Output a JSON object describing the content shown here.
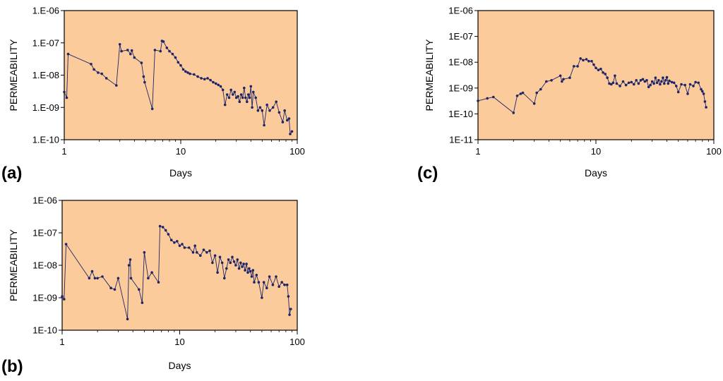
{
  "chart_data": [
    {
      "type": "line",
      "panel_label": "(a)",
      "xlabel": "Days",
      "ylabel": "PERMEABILITY",
      "xscale": "log",
      "yscale": "log",
      "xlim": [
        1,
        100
      ],
      "ylim": [
        1e-10,
        1e-06
      ],
      "x_ticks": [
        {
          "value": 1,
          "label": "1"
        },
        {
          "value": 10,
          "label": "10"
        },
        {
          "value": 100,
          "label": "100"
        }
      ],
      "y_ticks": [
        {
          "value": 1e-10,
          "label": "1.E-10"
        },
        {
          "value": 1e-09,
          "label": "1.E-09"
        },
        {
          "value": 1e-08,
          "label": "1.E-08"
        },
        {
          "value": 1e-07,
          "label": "1.E-07"
        },
        {
          "value": 1e-06,
          "label": "1.E-06"
        }
      ],
      "background": "#FCCB9C",
      "series_color": "#1E2566",
      "series": [
        {
          "name": "permeability",
          "points": [
            [
              1.0,
              3e-09
            ],
            [
              1.05,
              2e-09
            ],
            [
              1.08,
              4.5e-08
            ],
            [
              1.7,
              2.2e-08
            ],
            [
              1.8,
              1.5e-08
            ],
            [
              1.95,
              1.2e-08
            ],
            [
              2.1,
              1.1e-08
            ],
            [
              2.3,
              8e-09
            ],
            [
              2.8,
              4.8e-09
            ],
            [
              3.0,
              9e-08
            ],
            [
              3.1,
              5.5e-08
            ],
            [
              3.5,
              6e-08
            ],
            [
              3.7,
              4.5e-08
            ],
            [
              3.8,
              5.8e-08
            ],
            [
              4.0,
              3.5e-08
            ],
            [
              4.6,
              2.4e-08
            ],
            [
              4.8,
              9e-09
            ],
            [
              4.9,
              6e-09
            ],
            [
              5.7,
              9e-10
            ],
            [
              6.0,
              6e-08
            ],
            [
              6.7,
              5.5e-08
            ],
            [
              6.9,
              1.15e-07
            ],
            [
              7.1,
              1.1e-07
            ],
            [
              7.6,
              7e-08
            ],
            [
              8.0,
              5.5e-08
            ],
            [
              8.5,
              4.5e-08
            ],
            [
              9.0,
              3.5e-08
            ],
            [
              9.5,
              2.5e-08
            ],
            [
              10.0,
              2e-08
            ],
            [
              10.5,
              1.5e-08
            ],
            [
              11.0,
              1.3e-08
            ],
            [
              11.5,
              1.2e-08
            ],
            [
              12.0,
              1.1e-08
            ],
            [
              13.0,
              1.05e-08
            ],
            [
              14.0,
              9e-09
            ],
            [
              15.0,
              8e-09
            ],
            [
              16.0,
              7.5e-09
            ],
            [
              17.0,
              8e-09
            ],
            [
              18.0,
              7e-09
            ],
            [
              19.0,
              6e-09
            ],
            [
              20.0,
              5.5e-09
            ],
            [
              21.0,
              5e-09
            ],
            [
              22.0,
              4.5e-09
            ],
            [
              23.0,
              3.5e-09
            ],
            [
              24.0,
              1.2e-09
            ],
            [
              25.0,
              2.5e-09
            ],
            [
              26.0,
              2e-09
            ],
            [
              27.0,
              3.5e-09
            ],
            [
              28.0,
              2.5e-09
            ],
            [
              29.0,
              3e-09
            ],
            [
              30.0,
              2e-09
            ],
            [
              31.0,
              2.2e-09
            ],
            [
              32.0,
              1.5e-09
            ],
            [
              33.0,
              2.5e-09
            ],
            [
              34.0,
              2e-09
            ],
            [
              35.0,
              4e-09
            ],
            [
              36.0,
              2e-09
            ],
            [
              37.0,
              1.5e-09
            ],
            [
              38.0,
              2.5e-09
            ],
            [
              39.0,
              2e-09
            ],
            [
              40.0,
              4.5e-09
            ],
            [
              41.0,
              1e-09
            ],
            [
              42.0,
              3e-09
            ],
            [
              44.0,
              2e-09
            ],
            [
              46.0,
              8e-10
            ],
            [
              48.0,
              1e-09
            ],
            [
              50.0,
              8e-10
            ],
            [
              52.0,
              2.8e-10
            ],
            [
              55.0,
              1.2e-09
            ],
            [
              58.0,
              8e-10
            ],
            [
              62.0,
              1e-09
            ],
            [
              66.0,
              1.5e-09
            ],
            [
              70.0,
              7e-10
            ],
            [
              75.0,
              3.5e-10
            ],
            [
              78.0,
              8e-10
            ],
            [
              82.0,
              4e-10
            ],
            [
              85.0,
              4.5e-10
            ],
            [
              87.0,
              1.5e-10
            ],
            [
              90.0,
              1.8e-10
            ]
          ]
        }
      ]
    },
    {
      "type": "line",
      "panel_label": "(b)",
      "xlabel": "Days",
      "ylabel": "PERMEABILITY",
      "xscale": "log",
      "yscale": "log",
      "xlim": [
        1,
        100
      ],
      "ylim": [
        1e-10,
        1e-06
      ],
      "x_ticks": [
        {
          "value": 1,
          "label": "1"
        },
        {
          "value": 10,
          "label": "10"
        },
        {
          "value": 100,
          "label": "100"
        }
      ],
      "y_ticks": [
        {
          "value": 1e-10,
          "label": "1E-10"
        },
        {
          "value": 1e-09,
          "label": "1E-09"
        },
        {
          "value": 1e-08,
          "label": "1E-08"
        },
        {
          "value": 1e-07,
          "label": "1E-07"
        },
        {
          "value": 1e-06,
          "label": "1E-06"
        }
      ],
      "background": "#FCCB9C",
      "series_color": "#1E2566",
      "series": [
        {
          "name": "permeability",
          "points": [
            [
              1.0,
              1.1e-09
            ],
            [
              1.04,
              9e-10
            ],
            [
              1.08,
              4.5e-08
            ],
            [
              1.7,
              4e-09
            ],
            [
              1.8,
              6.5e-09
            ],
            [
              1.9,
              4e-09
            ],
            [
              2.0,
              4e-09
            ],
            [
              2.2,
              4.5e-09
            ],
            [
              2.6,
              2e-09
            ],
            [
              2.8,
              1.8e-09
            ],
            [
              3.0,
              4e-09
            ],
            [
              3.6,
              2.2e-10
            ],
            [
              3.7,
              1e-08
            ],
            [
              3.8,
              1.5e-08
            ],
            [
              3.85,
              4e-09
            ],
            [
              4.5,
              1.8e-09
            ],
            [
              4.8,
              7e-10
            ],
            [
              5.0,
              2.5e-08
            ],
            [
              5.4,
              4e-09
            ],
            [
              5.8,
              6e-09
            ],
            [
              6.6,
              3e-09
            ],
            [
              6.8,
              1.6e-07
            ],
            [
              7.2,
              1.5e-07
            ],
            [
              7.6,
              1.2e-07
            ],
            [
              8.0,
              9e-08
            ],
            [
              8.5,
              6e-08
            ],
            [
              9.0,
              5e-08
            ],
            [
              9.5,
              5.5e-08
            ],
            [
              10.0,
              4e-08
            ],
            [
              10.5,
              4.5e-08
            ],
            [
              11.0,
              3.5e-08
            ],
            [
              12.0,
              3.5e-08
            ],
            [
              13.0,
              2.5e-08
            ],
            [
              13.5,
              4e-08
            ],
            [
              14.0,
              2.5e-08
            ],
            [
              15.0,
              2e-08
            ],
            [
              16.0,
              3e-08
            ],
            [
              17.0,
              2.5e-08
            ],
            [
              18.0,
              2.8e-08
            ],
            [
              19.0,
              1.2e-08
            ],
            [
              20.0,
              2e-08
            ],
            [
              21.0,
              6e-09
            ],
            [
              22.0,
              1.8e-08
            ],
            [
              23.0,
              1.2e-08
            ],
            [
              24.0,
              4e-09
            ],
            [
              25.0,
              8e-09
            ],
            [
              26.0,
              1.5e-08
            ],
            [
              27.0,
              1.2e-08
            ],
            [
              28.0,
              1.8e-08
            ],
            [
              29.0,
              1.3e-08
            ],
            [
              30.0,
              1e-08
            ],
            [
              31.0,
              1.5e-08
            ],
            [
              32.0,
              8e-09
            ],
            [
              33.0,
              1.2e-08
            ],
            [
              34.0,
              9e-09
            ],
            [
              35.0,
              1.1e-08
            ],
            [
              36.0,
              7e-09
            ],
            [
              37.0,
              1.1e-08
            ],
            [
              38.0,
              6e-09
            ],
            [
              39.0,
              8e-09
            ],
            [
              40.0,
              6.5e-09
            ],
            [
              41.0,
              4.5e-09
            ],
            [
              42.0,
              7e-09
            ],
            [
              43.0,
              3e-09
            ],
            [
              45.0,
              5e-09
            ],
            [
              47.0,
              3e-09
            ],
            [
              50.0,
              1e-09
            ],
            [
              52.0,
              3e-09
            ],
            [
              55.0,
              2e-09
            ],
            [
              58.0,
              4.5e-09
            ],
            [
              62.0,
              2.5e-09
            ],
            [
              66.0,
              4.5e-09
            ],
            [
              70.0,
              2.2e-09
            ],
            [
              74.0,
              3e-09
            ],
            [
              78.0,
              2.5e-09
            ],
            [
              82.0,
              2.5e-09
            ],
            [
              84.0,
              1.1e-09
            ],
            [
              86.0,
              3e-10
            ],
            [
              88.0,
              4.5e-10
            ]
          ]
        }
      ]
    },
    {
      "type": "line",
      "panel_label": "(c)",
      "xlabel": "Days",
      "ylabel": "PERMEABILITY",
      "xscale": "log",
      "yscale": "log",
      "xlim": [
        1,
        100
      ],
      "ylim": [
        1e-11,
        1e-06
      ],
      "x_ticks": [
        {
          "value": 1,
          "label": "1"
        },
        {
          "value": 10,
          "label": "10"
        },
        {
          "value": 100,
          "label": "100"
        }
      ],
      "y_ticks": [
        {
          "value": 1e-11,
          "label": "1E-11"
        },
        {
          "value": 1e-10,
          "label": "1E-10"
        },
        {
          "value": 1e-09,
          "label": "1E-09"
        },
        {
          "value": 1e-08,
          "label": "1E-08"
        },
        {
          "value": 1e-07,
          "label": "1E-07"
        },
        {
          "value": 1e-06,
          "label": "1E-06"
        }
      ],
      "background": "#FCCB9C",
      "series_color": "#1E2566",
      "series": [
        {
          "name": "permeability",
          "points": [
            [
              1.0,
              3.2e-10
            ],
            [
              1.2,
              4e-10
            ],
            [
              1.35,
              4.5e-10
            ],
            [
              2.0,
              1.1e-10
            ],
            [
              2.15,
              5e-10
            ],
            [
              2.3,
              6e-10
            ],
            [
              2.4,
              6.5e-10
            ],
            [
              3.0,
              2.5e-10
            ],
            [
              3.15,
              6.5e-10
            ],
            [
              3.4,
              9e-10
            ],
            [
              3.8,
              1.8e-09
            ],
            [
              4.2,
              2e-09
            ],
            [
              5.0,
              3e-09
            ],
            [
              5.15,
              1.8e-09
            ],
            [
              5.3,
              2.2e-09
            ],
            [
              6.0,
              2.5e-09
            ],
            [
              6.5,
              7e-09
            ],
            [
              7.0,
              7e-09
            ],
            [
              7.4,
              1.4e-08
            ],
            [
              7.8,
              1.2e-08
            ],
            [
              8.3,
              1.3e-08
            ],
            [
              8.7,
              1.1e-08
            ],
            [
              9.2,
              1.1e-08
            ],
            [
              9.6,
              8e-09
            ],
            [
              10.0,
              6e-09
            ],
            [
              10.5,
              5e-09
            ],
            [
              11.0,
              5.5e-09
            ],
            [
              11.5,
              4e-09
            ],
            [
              12.0,
              3.5e-09
            ],
            [
              12.5,
              2.5e-09
            ],
            [
              13.0,
              1.5e-09
            ],
            [
              13.5,
              1.4e-09
            ],
            [
              14.0,
              1.6e-09
            ],
            [
              14.5,
              3e-09
            ],
            [
              15.0,
              1.5e-09
            ],
            [
              16.0,
              1.2e-09
            ],
            [
              17.0,
              1.8e-09
            ],
            [
              18.0,
              1.3e-09
            ],
            [
              19.0,
              1.6e-09
            ],
            [
              20.0,
              1.7e-09
            ],
            [
              21.0,
              1.4e-09
            ],
            [
              22.0,
              2e-09
            ],
            [
              23.0,
              1.5e-09
            ],
            [
              24.0,
              2e-09
            ],
            [
              25.0,
              2.2e-09
            ],
            [
              26.0,
              1.8e-09
            ],
            [
              27.0,
              2e-09
            ],
            [
              28.0,
              1.1e-09
            ],
            [
              29.0,
              1.3e-09
            ],
            [
              30.0,
              1.8e-09
            ],
            [
              31.0,
              1.5e-09
            ],
            [
              32.0,
              2.5e-09
            ],
            [
              33.0,
              1.6e-09
            ],
            [
              34.0,
              2e-09
            ],
            [
              35.0,
              1.4e-09
            ],
            [
              36.0,
              1.8e-09
            ],
            [
              37.0,
              2.5e-09
            ],
            [
              38.0,
              1.5e-09
            ],
            [
              39.0,
              2e-09
            ],
            [
              40.0,
              2.6e-09
            ],
            [
              41.0,
              1.5e-09
            ],
            [
              42.0,
              1.9e-09
            ],
            [
              44.0,
              1.7e-09
            ],
            [
              46.0,
              1.6e-09
            ],
            [
              48.0,
              1.2e-09
            ],
            [
              50.0,
              7e-10
            ],
            [
              53.0,
              1.4e-09
            ],
            [
              57.0,
              1.3e-09
            ],
            [
              60.0,
              6e-10
            ],
            [
              63.0,
              1.4e-09
            ],
            [
              67.0,
              1.2e-09
            ],
            [
              70.0,
              1.7e-09
            ],
            [
              74.0,
              1.6e-09
            ],
            [
              78.0,
              9e-10
            ],
            [
              80.0,
              7.5e-10
            ],
            [
              82.0,
              6e-10
            ],
            [
              84.0,
              3e-10
            ],
            [
              86.0,
              1.8e-10
            ]
          ]
        }
      ]
    }
  ]
}
